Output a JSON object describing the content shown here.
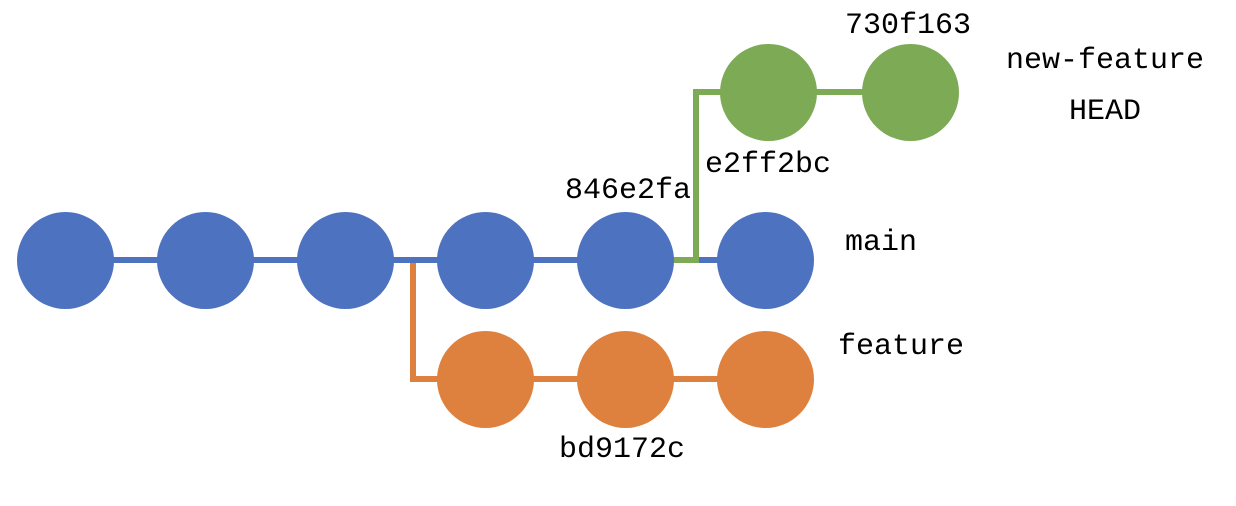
{
  "diagram": {
    "type": "git-commit-graph",
    "background": "#ffffff",
    "text_color": "#000000",
    "branches": [
      {
        "name": "main",
        "color": "#4d72bf",
        "commit_count": 6
      },
      {
        "name": "feature",
        "color": "#df813e",
        "commit_count": 3,
        "forks_from": "main"
      },
      {
        "name": "new-feature",
        "color": "#7caa55",
        "commit_count": 2,
        "forks_from": "main",
        "is_head": true
      }
    ],
    "labels": {
      "hash_730f163": "730f163",
      "branch_new_feature": "new-feature",
      "head": "HEAD",
      "hash_e2ff2bc": "e2ff2bc",
      "hash_846e2fa": "846e2fa",
      "branch_main": "main",
      "branch_feature": "feature",
      "hash_bd9172c": "bd9172c"
    }
  }
}
